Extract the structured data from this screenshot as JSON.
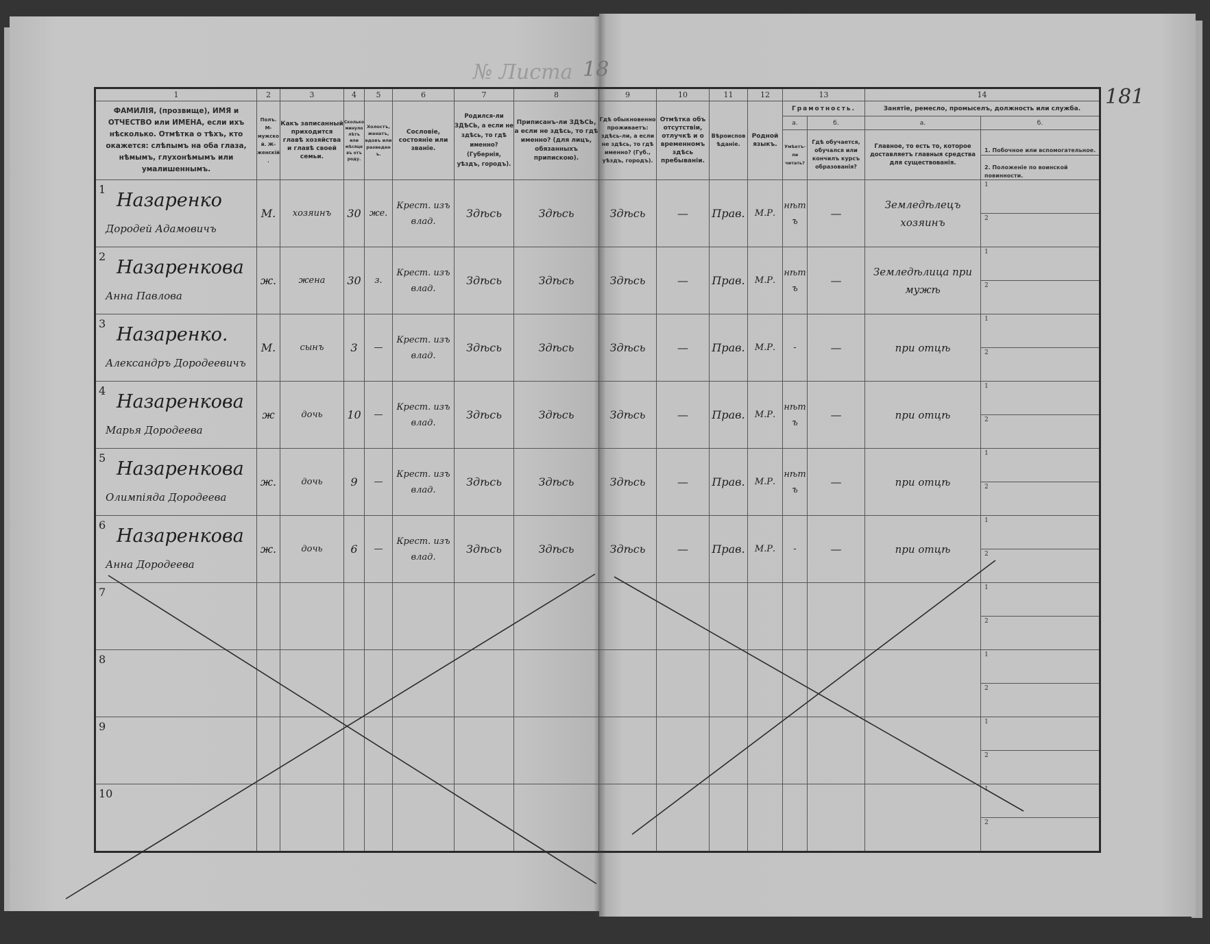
{
  "sheet": {
    "label": "№ Листа",
    "handwritten_number": "18",
    "right_page_number": "181"
  },
  "columns": {
    "numbers": [
      "1",
      "2",
      "3",
      "4",
      "5",
      "6",
      "7",
      "8",
      "9",
      "10",
      "11",
      "12",
      "13",
      "14"
    ],
    "c1": "ФАМИЛІЯ, (прозвище), ИМЯ и ОТЧЕСТВО или ИМЕНА, если ихъ нѣсколько. Отмѣтка о тѣхъ, кто окажется: слѣпымъ на оба глаза, нѣмымъ, глухонѣмымъ или умалишеннымъ.",
    "c2": "Полъ. М-мужской. Ж-женскій.",
    "c3": "Какъ записанный приходится главѣ хозяйства и главѣ своей семьи.",
    "c4": "Сколько минуло лѣтъ или мѣсяцевъ отъ роду.",
    "c5": "Холостъ, женатъ, вдовъ или разведенъ.",
    "c6": "Сословіе, состояніе или званіе.",
    "c7": "Родился-ли ЗДѢСЬ, а если не здѣсь, то гдѣ именно? (Губернія, уѣздъ, городъ).",
    "c8": "Приписанъ-ли ЗДѢСЬ, а если не здѣсь, то гдѣ именно? (для лицъ, обязанныхъ припискою).",
    "c9": "Гдѣ обыкновенно проживаетъ: здѣсь-ли, а если не здѣсь, то гдѣ именно? (Губ., уѣздъ, городъ).",
    "c10": "Отмѣтка объ отсутствіи, отлучкѣ и о временномъ здѣсь пребываніи.",
    "c11": "Вѣроисповѣданіе.",
    "c12": "Родной языкъ.",
    "c13": {
      "title": "Грамотность.",
      "a_label": "а.",
      "b_label": "б.",
      "a": "Умѣетъ-ли читать?",
      "b": "Гдѣ обучается, обучался или кончилъ курсъ образованія?"
    },
    "c14": {
      "title": "Занятіе, ремесло, промыселъ, должность или служба.",
      "a_label": "а.",
      "b_label": "б.",
      "a": "Главное, то есть то, которое доставляетъ главныя средства для существованія.",
      "b1": "1. Побочное или вспомогательное.",
      "b2": "2. Положеніе по воинской повинности."
    }
  },
  "sub_row_labels": [
    "1",
    "2"
  ],
  "rows": [
    {
      "n": "1",
      "surname": "Назаренко",
      "given": "Дородей Адамовичъ",
      "sex": "М.",
      "relation": "хозяинъ",
      "age": "30",
      "marital": "же.",
      "estate": "Крест. изъ влад.",
      "born": "Здѣсь",
      "registered": "Здѣсь",
      "resides": "Здѣсь",
      "absence": "—",
      "religion": "Прав.",
      "language": "М.Р.",
      "literate": "нѣтъ",
      "education": "—",
      "occupation": "Земледѣлецъ хозяинъ"
    },
    {
      "n": "2",
      "surname": "Назаренкова",
      "given": "Анна Павлова",
      "sex": "ж.",
      "relation": "жена",
      "age": "30",
      "marital": "з.",
      "estate": "Крест. изъ влад.",
      "born": "Здѣсь",
      "registered": "Здѣсь",
      "resides": "Здѣсь",
      "absence": "—",
      "religion": "Прав.",
      "language": "М.Р.",
      "literate": "нѣтъ",
      "education": "—",
      "occupation": "Земледѣлица при мужѣ"
    },
    {
      "n": "3",
      "surname": "Назаренко.",
      "given": "Александръ Дородеевичъ",
      "sex": "М.",
      "relation": "сынъ",
      "age": "3",
      "marital": "—",
      "estate": "Крест. изъ влад.",
      "born": "Здѣсь",
      "registered": "Здѣсь",
      "resides": "Здѣсь",
      "absence": "—",
      "religion": "Прав.",
      "language": "М.Р.",
      "literate": "-",
      "education": "—",
      "occupation": "при отцѣ"
    },
    {
      "n": "4",
      "surname": "Назаренкова",
      "given": "Марья Дородеева",
      "sex": "ж",
      "relation": "дочь",
      "age": "10",
      "marital": "—",
      "estate": "Крест. изъ влад.",
      "born": "Здѣсь",
      "registered": "Здѣсь",
      "resides": "Здѣсь",
      "absence": "—",
      "religion": "Прав.",
      "language": "М.Р.",
      "literate": "нѣтъ",
      "education": "—",
      "occupation": "при отцѣ"
    },
    {
      "n": "5",
      "surname": "Назаренкова",
      "given": "Олимпіяда Дородеева",
      "sex": "ж.",
      "relation": "дочь",
      "age": "9",
      "marital": "—",
      "estate": "Крест. изъ влад.",
      "born": "Здѣсь",
      "registered": "Здѣсь",
      "resides": "Здѣсь",
      "absence": "—",
      "religion": "Прав.",
      "language": "М.Р.",
      "literate": "нѣтъ",
      "education": "—",
      "occupation": "при отцѣ"
    },
    {
      "n": "6",
      "surname": "Назаренкова",
      "given": "Анна Дородеева",
      "sex": "ж.",
      "relation": "дочь",
      "age": "6",
      "marital": "—",
      "estate": "Крест. изъ влад.",
      "born": "Здѣсь",
      "registered": "Здѣсь",
      "resides": "Здѣсь",
      "absence": "—",
      "religion": "Прав.",
      "language": "М.Р.",
      "literate": "-",
      "education": "—",
      "occupation": "при отцѣ"
    },
    {
      "n": "7"
    },
    {
      "n": "8"
    },
    {
      "n": "9"
    },
    {
      "n": "10"
    }
  ]
}
